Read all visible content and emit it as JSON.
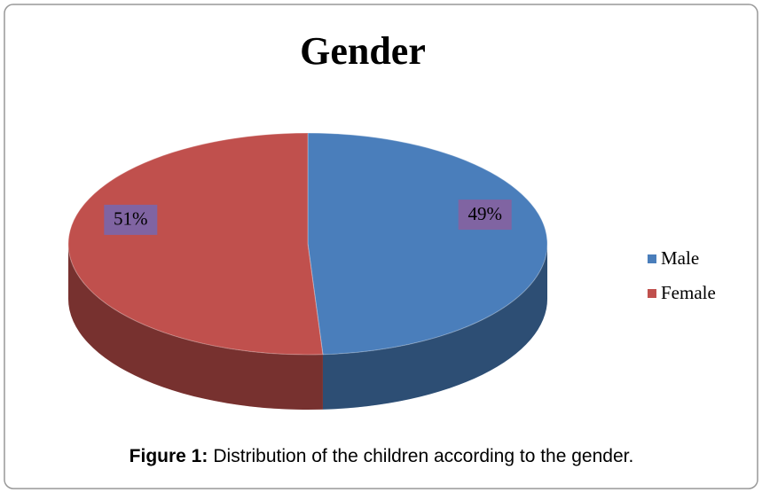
{
  "chart_data": {
    "type": "pie",
    "title": "Gender",
    "categories": [
      "Male",
      "Female"
    ],
    "values": [
      49,
      51
    ],
    "value_labels": [
      "49%",
      "51%"
    ],
    "colors": [
      "#4a7ebb",
      "#c0504d"
    ],
    "label_color": "#8064a2",
    "legend": "right"
  },
  "caption": {
    "label": "Figure 1:",
    "text": "Distribution of the children according to the gender."
  }
}
